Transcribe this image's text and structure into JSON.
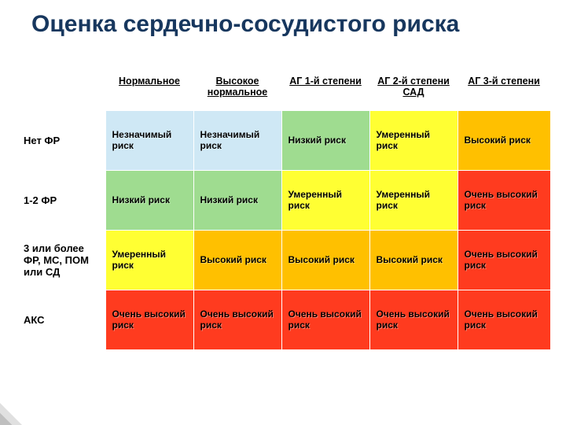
{
  "title": "Оценка сердечно-сосудистого риска",
  "columns": [
    "",
    "Нормальное",
    "Высокое нормальное",
    "АГ 1-й степени",
    "АГ 2-й степени САД",
    "АГ 3-й степени"
  ],
  "col_widths": [
    "110px",
    "112px",
    "112px",
    "112px",
    "112px",
    "118px"
  ],
  "row_headers": [
    "Нет  ФР",
    "1-2 ФР",
    "3 или более ФР, МС, ПОМ или СД",
    "АКС"
  ],
  "cells": [
    [
      {
        "text": "Незначимый риск",
        "bg": "#cfe8f5"
      },
      {
        "text": "Незначимый риск",
        "bg": "#cfe8f5"
      },
      {
        "text": "Низкий риск",
        "bg": "#9fdc90"
      },
      {
        "text": "Умеренный риск",
        "bg": "#ffff33"
      },
      {
        "text": "Высокий риск",
        "bg": "#ffc000"
      }
    ],
    [
      {
        "text": "Низкий риск",
        "bg": "#9fdc90"
      },
      {
        "text": "Низкий риск",
        "bg": "#9fdc90"
      },
      {
        "text": "Умеренный риск",
        "bg": "#ffff33"
      },
      {
        "text": "Умеренный риск",
        "bg": "#ffff33"
      },
      {
        "text": "Очень высокий риск",
        "bg": "#ff3b1f"
      }
    ],
    [
      {
        "text": "Умеренный риск",
        "bg": "#ffff33"
      },
      {
        "text": "Высокий риск",
        "bg": "#ffc000"
      },
      {
        "text": "Высокий риск",
        "bg": "#ffc000"
      },
      {
        "text": "Высокий риск",
        "bg": "#ffc000"
      },
      {
        "text": "Очень высокий риск",
        "bg": "#ff3b1f"
      }
    ],
    [
      {
        "text": "Очень высокий риск",
        "bg": "#ff3b1f"
      },
      {
        "text": "Очень высокий риск",
        "bg": "#ff3b1f"
      },
      {
        "text": "Очень высокий риск",
        "bg": "#ff3b1f"
      },
      {
        "text": "Очень высокий риск",
        "bg": "#ff3b1f"
      },
      {
        "text": "Очень высокий риск",
        "bg": "#ff3b1f"
      }
    ]
  ],
  "title_color": "#17375e",
  "title_fontsize": 30,
  "cell_fontsize": 12,
  "header_fontsize": 12.5
}
